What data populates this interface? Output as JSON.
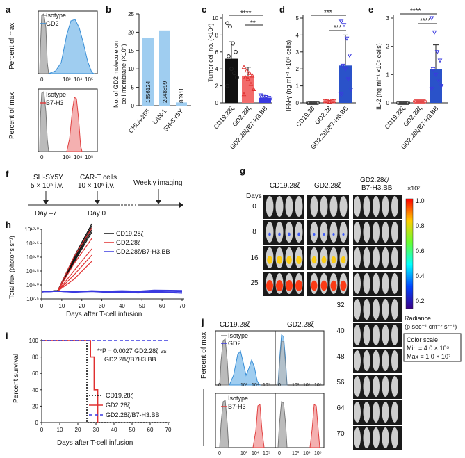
{
  "panels": {
    "a": "a",
    "b": "b",
    "c": "c",
    "d": "d",
    "e": "e",
    "f": "f",
    "g": "g",
    "h": "h",
    "i": "i",
    "j": "j"
  },
  "a": {
    "ylabel": "Percent of max",
    "top_legend": [
      "Isotype",
      "GD2"
    ],
    "bottom_legend": [
      "Isotype",
      "B7-H3"
    ],
    "xticks": [
      "0",
      "10³",
      "10⁴",
      "10⁵"
    ]
  },
  "b": {
    "ylabel_line1": "No. of GD2 molecule on",
    "ylabel_line2": "cell membrane (×10⁵)",
    "yticks": [
      "0",
      "5",
      "10",
      "15",
      "20",
      "25"
    ],
    "bars": [
      {
        "name": "CHLA-255",
        "value": 18.56124,
        "label": "1856124"
      },
      {
        "name": "LAN-1",
        "value": 20.48899,
        "label": "2048899"
      },
      {
        "name": "SH-SY5Y",
        "value": 0.86911,
        "label": "86911"
      }
    ]
  },
  "c": {
    "ylabel": "Tumor cell no. (×10⁴)",
    "yticks": [
      "0",
      "2",
      "4",
      "6",
      "8",
      "10"
    ],
    "groups": [
      "CD19.28ζ",
      "GD2.28ζ",
      "GD2.28ζ/B7-H3.BB"
    ],
    "means": [
      5.2,
      3.2,
      0.6
    ],
    "sig": [
      "****",
      "**"
    ]
  },
  "d": {
    "ylabel": "IFN-γ (ng ml⁻¹ ×10⁵ cells)",
    "yticks": [
      "0",
      "1",
      "2",
      "3",
      "4",
      "5"
    ],
    "groups": [
      "CD19.28",
      "GD2.28",
      "GD2.28ζ/B7-H3.BB"
    ],
    "means": [
      0.02,
      0.08,
      2.2
    ],
    "sig": [
      "***",
      "***"
    ]
  },
  "e": {
    "ylabel": "IL-2 (ng ml⁻¹ ×10⁵ cells)",
    "yticks": [
      "0",
      "1",
      "2",
      "3"
    ],
    "groups": [
      "CD19.28ζ",
      "GD2.28ζ",
      "GD2.28ζ/B7-H3.BB"
    ],
    "means": [
      0.02,
      0.05,
      1.2
    ],
    "sig": [
      "****",
      "****"
    ]
  },
  "f": {
    "step1_line1": "SH-SY5Y",
    "step1_line2": "5 × 10⁵ i.v.",
    "step2_line1": "CAR-T cells",
    "step2_line2": "10 × 10⁶ i.v.",
    "step3": "Weekly imaging",
    "day1": "Day –7",
    "day2": "Day 0"
  },
  "g": {
    "col1": "CD19.28ζ",
    "col2": "GD2.28ζ",
    "col3_line1": "GD2.28ζ/",
    "col3_line2": "B7-H3.BB",
    "days_label": "Days",
    "days": [
      "0",
      "8",
      "16",
      "25",
      "32",
      "40",
      "48",
      "56",
      "64",
      "70"
    ],
    "scale_exp": "×10⁷",
    "scale_ticks": [
      "1.0",
      "0.8",
      "0.6",
      "0.4",
      "0.2"
    ],
    "radiance_line1": "Radiance",
    "radiance_line2": "(p sec⁻¹ cm⁻² sr⁻¹)",
    "color_scale_line1": "Color scale",
    "color_scale_line2": "Min = 4.0 × 10⁵",
    "color_scale_line3": "Max = 1.0 × 10⁷"
  },
  "h": {
    "ylabel": "Total flux (photons s⁻¹)",
    "xlabel": "Days after T-cell infusion",
    "xticks": [
      "0",
      "10",
      "20",
      "30",
      "40",
      "50",
      "60",
      "70"
    ],
    "yticks": [
      "10⁷·⁵",
      "10⁸·⁰",
      "10⁸·⁵",
      "10⁹·⁰",
      "10⁹·⁵",
      "10¹⁰·⁰"
    ],
    "legend": [
      "CD19.28ζ",
      "GD2.28ζ",
      "GD2.28ζ/B7-H3.BB"
    ],
    "colors": [
      "#111111",
      "#e03030",
      "#3a3ae0"
    ]
  },
  "i": {
    "ylabel": "Percent survival",
    "xlabel": "Days after T-cell infusion",
    "xticks": [
      "0",
      "10",
      "20",
      "30",
      "40",
      "50",
      "60",
      "70"
    ],
    "yticks": [
      "0",
      "20",
      "40",
      "60",
      "80",
      "100"
    ],
    "pval_line1": "**P = 0.0027 GD2.28ζ vs",
    "pval_line2": "GD2.28ζ/B7H3.BB",
    "legend": [
      "CD19.28ζ",
      "GD2.28ζ",
      "GD2.28ζ/B7-H3.BB"
    ]
  },
  "j": {
    "ylabel": "Percent of max",
    "col1": "CD19.28ζ",
    "col2": "GD2.28ζ",
    "top_legend": [
      "Isotype",
      "GD2"
    ],
    "bottom_legend": [
      "Isotype",
      "B7-H3"
    ],
    "xticks": [
      "0",
      "10³",
      "10⁴",
      "10⁵"
    ]
  },
  "chart_data": [
    {
      "type": "bar",
      "panel": "b",
      "categories": [
        "CHLA-255",
        "LAN-1",
        "SH-SY5Y"
      ],
      "values": [
        18.56124,
        20.48899,
        0.86911
      ],
      "ylabel": "No. of GD2 molecule on cell membrane (×10⁵)",
      "ylim": [
        0,
        25
      ]
    },
    {
      "type": "bar",
      "panel": "c",
      "categories": [
        "CD19.28ζ",
        "GD2.28ζ",
        "GD2.28ζ/B7-H3.BB"
      ],
      "values": [
        5.2,
        3.2,
        0.6
      ],
      "ylabel": "Tumor cell no. (×10⁴)",
      "ylim": [
        0,
        10
      ]
    },
    {
      "type": "bar",
      "panel": "d",
      "categories": [
        "CD19.28",
        "GD2.28",
        "GD2.28ζ/B7-H3.BB"
      ],
      "values": [
        0.02,
        0.08,
        2.2
      ],
      "ylabel": "IFN-γ (ng ml⁻¹ ×10⁵ cells)",
      "ylim": [
        0,
        5
      ]
    },
    {
      "type": "bar",
      "panel": "e",
      "categories": [
        "CD19.28ζ",
        "GD2.28ζ",
        "GD2.28ζ/B7-H3.BB"
      ],
      "values": [
        0.02,
        0.05,
        1.2
      ],
      "ylabel": "IL-2 (ng ml⁻¹ ×10⁵ cells)",
      "ylim": [
        0,
        3
      ]
    },
    {
      "type": "line",
      "panel": "h",
      "xlabel": "Days after T-cell infusion",
      "ylabel": "Total flux (photons s⁻¹)",
      "xlim": [
        0,
        70
      ],
      "ylim": [
        7.5,
        10.0
      ],
      "series": [
        {
          "name": "CD19.28ζ",
          "x": [
            0,
            8,
            16,
            25
          ],
          "y": [
            7.75,
            7.8,
            8.9,
            10.05
          ]
        },
        {
          "name": "GD2.28ζ",
          "x": [
            0,
            8,
            16,
            25
          ],
          "y": [
            7.75,
            7.78,
            8.5,
            9.3
          ]
        },
        {
          "name": "GD2.28ζ/B7-H3.BB",
          "x": [
            0,
            8,
            16,
            25,
            32,
            40,
            48,
            56,
            64,
            70
          ],
          "y": [
            7.75,
            7.77,
            7.75,
            7.78,
            7.76,
            7.77,
            7.75,
            7.78,
            7.77,
            7.76
          ]
        }
      ]
    },
    {
      "type": "line",
      "panel": "i",
      "xlabel": "Days after T-cell infusion",
      "ylabel": "Percent survival",
      "xlim": [
        0,
        70
      ],
      "ylim": [
        0,
        100
      ],
      "series": [
        {
          "name": "CD19.28ζ",
          "x": [
            0,
            25,
            25,
            70
          ],
          "y": [
            100,
            100,
            0,
            0
          ]
        },
        {
          "name": "GD2.28ζ",
          "x": [
            0,
            27,
            27,
            29,
            29,
            31,
            31
          ],
          "y": [
            100,
            100,
            80,
            80,
            40,
            40,
            0
          ]
        },
        {
          "name": "GD2.28ζ/B7-H3.BB",
          "x": [
            0,
            70
          ],
          "y": [
            100,
            100
          ]
        }
      ]
    }
  ]
}
